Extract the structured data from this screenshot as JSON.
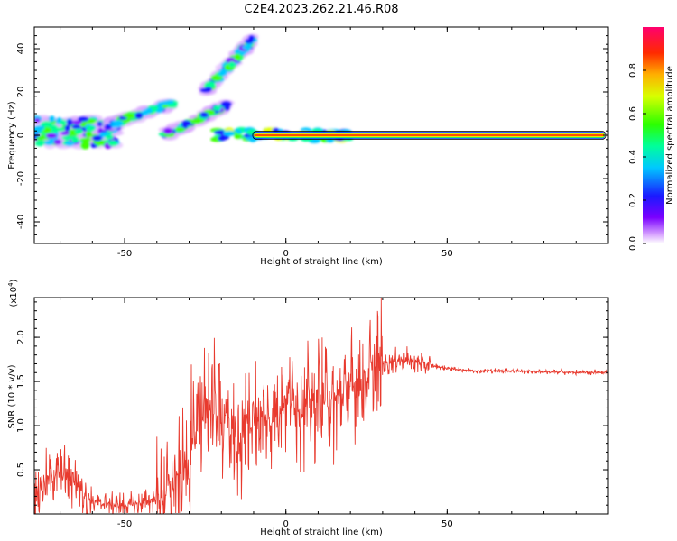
{
  "title": "C2E4.2023.262.21.46.R08",
  "chart_data": [
    {
      "type": "heatmap",
      "xlabel": "Height of straight line (km)",
      "ylabel": "Frequency (Hz)",
      "xlim": [
        -78,
        100
      ],
      "ylim": [
        -50,
        50
      ],
      "xticks": [
        -50,
        0,
        50
      ],
      "yticks": [
        -40,
        -20,
        0,
        20,
        40
      ],
      "colorbar": {
        "label": "Normalized spectral amplitude",
        "range": [
          0,
          1
        ],
        "ticks": [
          "0.0",
          "0.2",
          "0.4",
          "0.6",
          "0.8"
        ]
      },
      "features": [
        {
          "kind": "flat-band",
          "x_from": -10,
          "x_to": 100,
          "freq": 0,
          "amplitude": 0.85
        },
        {
          "kind": "scatter-blobs",
          "x_from": -78,
          "x_to": -52,
          "freq_min": -5,
          "freq_max": 8
        },
        {
          "kind": "rising-streak",
          "x_from": -55,
          "x_to": -35,
          "freq_min": 5,
          "freq_max": 15
        },
        {
          "kind": "rising-streak",
          "x_from": -38,
          "x_to": -18,
          "freq_min": 0,
          "freq_max": 14
        },
        {
          "kind": "rising-streak",
          "x_from": -25,
          "x_to": -10,
          "freq_min": 20,
          "freq_max": 45
        }
      ]
    },
    {
      "type": "line",
      "xlabel": "Height of straight line (km)",
      "ylabel": "SNR (10 * v/v)",
      "scale_label": "(x10^4)",
      "xlim": [
        -78,
        100
      ],
      "ylim": [
        0,
        2.45
      ],
      "xticks": [
        -50,
        0,
        50
      ],
      "yticks": [
        "0.5",
        "1.0",
        "1.5",
        "2.0"
      ],
      "color": "#e83a2e",
      "series": [
        {
          "x": [
            -78,
            -72,
            -66,
            -60,
            -55,
            -50,
            -45,
            -40,
            -35,
            -30,
            -27,
            -24,
            -21,
            -18,
            -15,
            -12,
            -9,
            -6,
            -3,
            0,
            5,
            10,
            15,
            20,
            25,
            30,
            35,
            40,
            45,
            50,
            55,
            60,
            70,
            80,
            90,
            100
          ],
          "values": [
            0.25,
            0.45,
            0.4,
            0.15,
            0.1,
            0.1,
            0.12,
            0.18,
            0.3,
            0.6,
            1.0,
            1.3,
            1.0,
            1.1,
            0.8,
            1.0,
            1.1,
            1.05,
            1.2,
            1.3,
            1.2,
            1.3,
            1.25,
            1.4,
            1.55,
            1.7,
            1.75,
            1.72,
            1.68,
            1.65,
            1.63,
            1.62,
            1.62,
            1.61,
            1.6,
            1.6
          ]
        }
      ]
    }
  ]
}
